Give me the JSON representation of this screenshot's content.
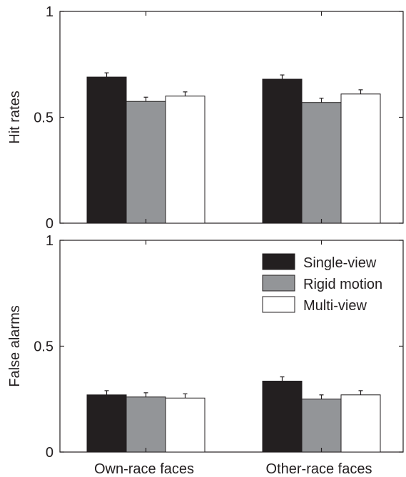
{
  "colors": {
    "single_view": "#231f20",
    "rigid_motion": "#939598",
    "multi_view": "#ffffff",
    "axis": "#231f20"
  },
  "legend": {
    "position": "top-right",
    "items": [
      "Single-view",
      "Rigid motion",
      "Multi-view"
    ]
  },
  "chart_data": [
    {
      "type": "bar",
      "ylabel": "Hit rates",
      "ylim": [
        0,
        1
      ],
      "yticks": [
        "0",
        "0.5",
        "1"
      ],
      "categories": [
        "Own-race faces",
        "Other-race faces"
      ],
      "series": [
        {
          "name": "Single-view",
          "values": [
            0.69,
            0.68
          ],
          "errors": [
            0.02,
            0.02
          ]
        },
        {
          "name": "Rigid motion",
          "values": [
            0.575,
            0.57
          ],
          "errors": [
            0.02,
            0.02
          ]
        },
        {
          "name": "Multi-view",
          "values": [
            0.6,
            0.61
          ],
          "errors": [
            0.02,
            0.02
          ]
        }
      ]
    },
    {
      "type": "bar",
      "ylabel": "False alarms",
      "ylim": [
        0,
        1
      ],
      "yticks": [
        "0",
        "0.5",
        "1"
      ],
      "categories": [
        "Own-race faces",
        "Other-race faces"
      ],
      "xlabels": [
        "Own-race faces",
        "Other-race faces"
      ],
      "series": [
        {
          "name": "Single-view",
          "values": [
            0.27,
            0.335
          ],
          "errors": [
            0.02,
            0.02
          ]
        },
        {
          "name": "Rigid motion",
          "values": [
            0.26,
            0.25
          ],
          "errors": [
            0.02,
            0.02
          ]
        },
        {
          "name": "Multi-view",
          "values": [
            0.255,
            0.27
          ],
          "errors": [
            0.02,
            0.02
          ]
        }
      ]
    }
  ]
}
